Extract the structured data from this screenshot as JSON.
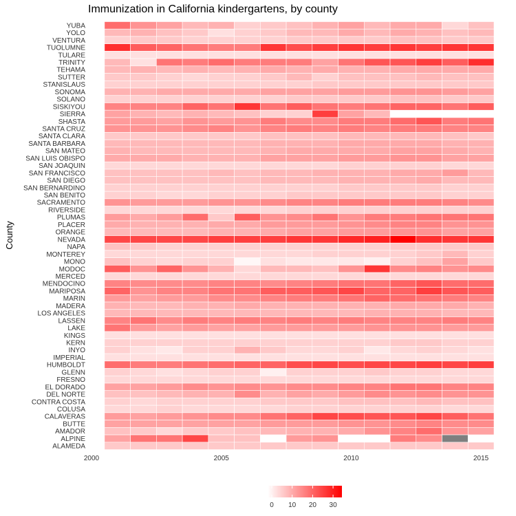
{
  "chart_data": {
    "type": "heatmap",
    "title": "Immunization in California kindergartens, by county",
    "ylabel": "County",
    "xlabel": "",
    "x": [
      2001,
      2002,
      2003,
      2004,
      2005,
      2006,
      2007,
      2008,
      2009,
      2010,
      2011,
      2012,
      2013,
      2014,
      2015
    ],
    "xlim": [
      2000,
      2015.5
    ],
    "xticks": [
      "2000",
      "2005",
      "2010",
      "2015"
    ],
    "value_range": [
      0,
      33
    ],
    "legend": {
      "position": "bottom",
      "ticks": [
        "0",
        "10",
        "20",
        "30"
      ]
    },
    "colors": {
      "low": "#ffffff",
      "high": "#ff0000",
      "missing": "#7f7f7f",
      "grid_line": "#ffffff"
    },
    "rows": [
      {
        "county": "YUBA",
        "values": [
          19,
          14,
          12,
          9,
          10,
          6,
          7,
          8,
          10,
          12,
          9,
          11,
          11,
          5,
          8
        ]
      },
      {
        "county": "YOLO",
        "values": [
          9,
          10,
          8,
          7,
          4,
          6,
          7,
          9,
          9,
          11,
          9,
          11,
          10,
          8,
          9
        ]
      },
      {
        "county": "VENTURA",
        "values": [
          6,
          7,
          7,
          6,
          6,
          6,
          6,
          7,
          7,
          7,
          7,
          8,
          8,
          7,
          7
        ]
      },
      {
        "county": "TUOLUMNE",
        "values": [
          27,
          21,
          20,
          18,
          17,
          17,
          26,
          23,
          25,
          26,
          25,
          26,
          25,
          26,
          26
        ]
      },
      {
        "county": "TULARE",
        "values": [
          4,
          4,
          4,
          4,
          4,
          4,
          4,
          4,
          4,
          4,
          4,
          4,
          4,
          4,
          4
        ]
      },
      {
        "county": "TRINITY",
        "values": [
          9,
          4,
          18,
          17,
          19,
          17,
          17,
          17,
          12,
          18,
          22,
          22,
          25,
          21,
          27
        ]
      },
      {
        "county": "TEHAMA",
        "values": [
          9,
          10,
          9,
          10,
          9,
          10,
          11,
          10,
          11,
          10,
          10,
          11,
          11,
          11,
          11
        ]
      },
      {
        "county": "SUTTER",
        "values": [
          7,
          7,
          6,
          5,
          6,
          6,
          7,
          9,
          6,
          8,
          8,
          8,
          9,
          8,
          8
        ]
      },
      {
        "county": "STANISLAUS",
        "values": [
          6,
          6,
          6,
          6,
          6,
          6,
          6,
          6,
          7,
          7,
          7,
          7,
          7,
          7,
          7
        ]
      },
      {
        "county": "SONOMA",
        "values": [
          10,
          10,
          11,
          11,
          11,
          11,
          12,
          12,
          12,
          13,
          13,
          14,
          14,
          13,
          12
        ]
      },
      {
        "county": "SOLANO",
        "values": [
          6,
          6,
          6,
          6,
          6,
          6,
          6,
          7,
          7,
          7,
          7,
          8,
          8,
          7,
          7
        ]
      },
      {
        "county": "SISKIYOU",
        "values": [
          16,
          16,
          16,
          20,
          18,
          26,
          18,
          21,
          18,
          17,
          18,
          20,
          20,
          18,
          21
        ]
      },
      {
        "county": "SIERRA",
        "values": [
          12,
          10,
          9,
          10,
          9,
          8,
          6,
          6,
          25,
          12,
          9,
          null,
          null,
          null,
          null
        ]
      },
      {
        "county": "SHASTA",
        "values": [
          13,
          13,
          12,
          14,
          13,
          14,
          17,
          15,
          15,
          17,
          17,
          19,
          22,
          17,
          18
        ]
      },
      {
        "county": "SANTA CRUZ",
        "values": [
          14,
          14,
          14,
          15,
          16,
          14,
          16,
          17,
          16,
          17,
          16,
          17,
          17,
          16,
          16
        ]
      },
      {
        "county": "SANTA CLARA",
        "values": [
          7,
          7,
          7,
          7,
          7,
          7,
          8,
          8,
          8,
          9,
          9,
          9,
          9,
          8,
          7
        ]
      },
      {
        "county": "SANTA BARBARA",
        "values": [
          9,
          9,
          9,
          9,
          9,
          9,
          10,
          10,
          10,
          11,
          11,
          11,
          11,
          10,
          10
        ]
      },
      {
        "county": "SAN MATEO",
        "values": [
          10,
          9,
          9,
          9,
          9,
          9,
          10,
          11,
          11,
          11,
          11,
          12,
          12,
          11,
          10
        ]
      },
      {
        "county": "SAN LUIS OBISPO",
        "values": [
          11,
          11,
          11,
          10,
          10,
          10,
          12,
          12,
          12,
          13,
          13,
          14,
          14,
          12,
          12
        ]
      },
      {
        "county": "SAN JOAQUIN",
        "values": [
          5,
          5,
          5,
          5,
          5,
          5,
          5,
          5,
          5,
          6,
          6,
          6,
          6,
          5,
          5
        ]
      },
      {
        "county": "SAN FRANCISCO",
        "values": [
          8,
          8,
          8,
          8,
          9,
          8,
          9,
          9,
          10,
          10,
          10,
          11,
          11,
          13,
          9
        ]
      },
      {
        "county": "SAN DIEGO",
        "values": [
          8,
          8,
          8,
          8,
          8,
          8,
          9,
          9,
          9,
          10,
          10,
          10,
          11,
          9,
          9
        ]
      },
      {
        "county": "SAN BERNARDINO",
        "values": [
          6,
          6,
          6,
          6,
          6,
          6,
          6,
          6,
          6,
          7,
          7,
          7,
          7,
          6,
          6
        ]
      },
      {
        "county": "SAN BENITO",
        "values": [
          6,
          6,
          5,
          5,
          6,
          6,
          6,
          7,
          7,
          7,
          7,
          7,
          7,
          6,
          6
        ]
      },
      {
        "county": "SACRAMENTO",
        "values": [
          14,
          13,
          13,
          13,
          14,
          14,
          15,
          16,
          16,
          17,
          17,
          17,
          17,
          16,
          15
        ]
      },
      {
        "county": "RIVERSIDE",
        "values": [
          5,
          5,
          5,
          5,
          5,
          5,
          5,
          6,
          6,
          6,
          6,
          6,
          6,
          6,
          6
        ]
      },
      {
        "county": "PLUMAS",
        "values": [
          13,
          11,
          13,
          19,
          7,
          21,
          14,
          15,
          18,
          14,
          17,
          17,
          18,
          18,
          18
        ]
      },
      {
        "county": "PLACER",
        "values": [
          11,
          10,
          10,
          10,
          11,
          11,
          13,
          13,
          13,
          14,
          15,
          16,
          16,
          14,
          14
        ]
      },
      {
        "county": "ORANGE",
        "values": [
          9,
          9,
          9,
          9,
          10,
          10,
          11,
          12,
          12,
          13,
          13,
          14,
          14,
          12,
          12
        ]
      },
      {
        "county": "NEVADA",
        "values": [
          24,
          24,
          24,
          24,
          25,
          25,
          25,
          26,
          26,
          28,
          29,
          33,
          27,
          26,
          26
        ]
      },
      {
        "county": "NAPA",
        "values": [
          8,
          7,
          6,
          6,
          6,
          6,
          6,
          6,
          6,
          6,
          6,
          7,
          7,
          7,
          7
        ]
      },
      {
        "county": "MONTEREY",
        "values": [
          5,
          5,
          5,
          5,
          5,
          5,
          5,
          5,
          6,
          6,
          6,
          6,
          7,
          9,
          6
        ]
      },
      {
        "county": "MONO",
        "values": [
          8,
          6,
          5,
          6,
          6,
          1,
          4,
          3,
          3,
          3,
          2,
          6,
          8,
          12,
          7
        ]
      },
      {
        "county": "MODOC",
        "values": [
          21,
          14,
          20,
          14,
          10,
          5,
          9,
          9,
          8,
          14,
          26,
          15,
          16,
          14,
          15
        ]
      },
      {
        "county": "MERCED",
        "values": [
          5,
          5,
          5,
          5,
          5,
          5,
          5,
          5,
          5,
          5,
          5,
          5,
          5,
          5,
          5
        ]
      },
      {
        "county": "MENDOCINO",
        "values": [
          16,
          15,
          15,
          15,
          16,
          16,
          15,
          16,
          17,
          18,
          18,
          20,
          22,
          19,
          19
        ]
      },
      {
        "county": "MARIPOSA",
        "values": [
          20,
          14,
          16,
          16,
          18,
          18,
          21,
          21,
          22,
          24,
          20,
          20,
          25,
          22,
          21
        ]
      },
      {
        "county": "MARIN",
        "values": [
          13,
          12,
          13,
          13,
          15,
          15,
          16,
          17,
          17,
          18,
          20,
          19,
          18,
          17,
          16
        ]
      },
      {
        "county": "MADERA",
        "values": [
          10,
          9,
          9,
          10,
          10,
          11,
          10,
          10,
          10,
          10,
          10,
          11,
          11,
          11,
          10
        ]
      },
      {
        "county": "LOS ANGELES",
        "values": [
          9,
          9,
          9,
          9,
          9,
          9,
          9,
          9,
          9,
          9,
          10,
          10,
          10,
          9,
          9
        ]
      },
      {
        "county": "LASSEN",
        "values": [
          16,
          18,
          15,
          17,
          16,
          17,
          16,
          17,
          16,
          17,
          16,
          16,
          16,
          17,
          16
        ]
      },
      {
        "county": "LAKE",
        "values": [
          18,
          13,
          12,
          13,
          12,
          12,
          13,
          13,
          13,
          13,
          14,
          14,
          14,
          13,
          13
        ]
      },
      {
        "county": "KINGS",
        "values": [
          4,
          4,
          4,
          4,
          4,
          4,
          4,
          4,
          4,
          4,
          4,
          4,
          4,
          4,
          4
        ]
      },
      {
        "county": "KERN",
        "values": [
          6,
          6,
          6,
          6,
          6,
          6,
          6,
          6,
          6,
          6,
          6,
          7,
          7,
          6,
          6
        ]
      },
      {
        "county": "INYO",
        "values": [
          6,
          4,
          3,
          6,
          6,
          10,
          7,
          5,
          5,
          6,
          3,
          5,
          6,
          5,
          4
        ]
      },
      {
        "county": "IMPERIAL",
        "values": [
          4,
          4,
          4,
          4,
          4,
          4,
          4,
          4,
          4,
          4,
          4,
          4,
          4,
          4,
          4
        ]
      },
      {
        "county": "HUMBOLDT",
        "values": [
          19,
          17,
          17,
          18,
          19,
          20,
          20,
          23,
          24,
          23,
          24,
          24,
          25,
          24,
          25
        ]
      },
      {
        "county": "GLENN",
        "values": [
          6,
          5,
          4,
          5,
          6,
          6,
          2,
          6,
          6,
          6,
          7,
          6,
          6,
          5,
          5
        ]
      },
      {
        "county": "FRESNO",
        "values": [
          5,
          5,
          5,
          5,
          5,
          5,
          5,
          5,
          5,
          5,
          5,
          5,
          5,
          5,
          5
        ]
      },
      {
        "county": "EL DORADO",
        "values": [
          12,
          12,
          13,
          15,
          14,
          15,
          14,
          15,
          15,
          16,
          16,
          18,
          18,
          16,
          16
        ]
      },
      {
        "county": "DEL NORTE",
        "values": [
          8,
          8,
          9,
          10,
          10,
          15,
          10,
          12,
          11,
          13,
          15,
          14,
          15,
          14,
          14
        ]
      },
      {
        "county": "CONTRA COSTA",
        "values": [
          6,
          5,
          6,
          6,
          6,
          6,
          7,
          7,
          7,
          8,
          8,
          8,
          9,
          8,
          8
        ]
      },
      {
        "county": "COLUSA",
        "values": [
          5,
          5,
          6,
          5,
          5,
          5,
          5,
          6,
          6,
          6,
          6,
          6,
          6,
          5,
          5
        ]
      },
      {
        "county": "CALAVERAS",
        "values": [
          13,
          12,
          13,
          14,
          15,
          15,
          18,
          20,
          24,
          23,
          22,
          22,
          24,
          21,
          18
        ]
      },
      {
        "county": "BUTTE",
        "values": [
          12,
          12,
          12,
          12,
          12,
          12,
          13,
          13,
          13,
          14,
          14,
          15,
          16,
          15,
          15
        ]
      },
      {
        "county": "AMADOR",
        "values": [
          8,
          7,
          5,
          7,
          7,
          8,
          9,
          10,
          10,
          11,
          14,
          16,
          19,
          14,
          12
        ]
      },
      {
        "county": "ALPINE",
        "values": [
          12,
          18,
          18,
          24,
          8,
          8,
          0,
          13,
          14,
          0,
          0,
          17,
          15,
          null,
          0
        ]
      },
      {
        "county": "ALAMEDA",
        "values": [
          7,
          7,
          7,
          7,
          7,
          7,
          7,
          7,
          7,
          7,
          7,
          7,
          7,
          7,
          7
        ]
      }
    ]
  }
}
